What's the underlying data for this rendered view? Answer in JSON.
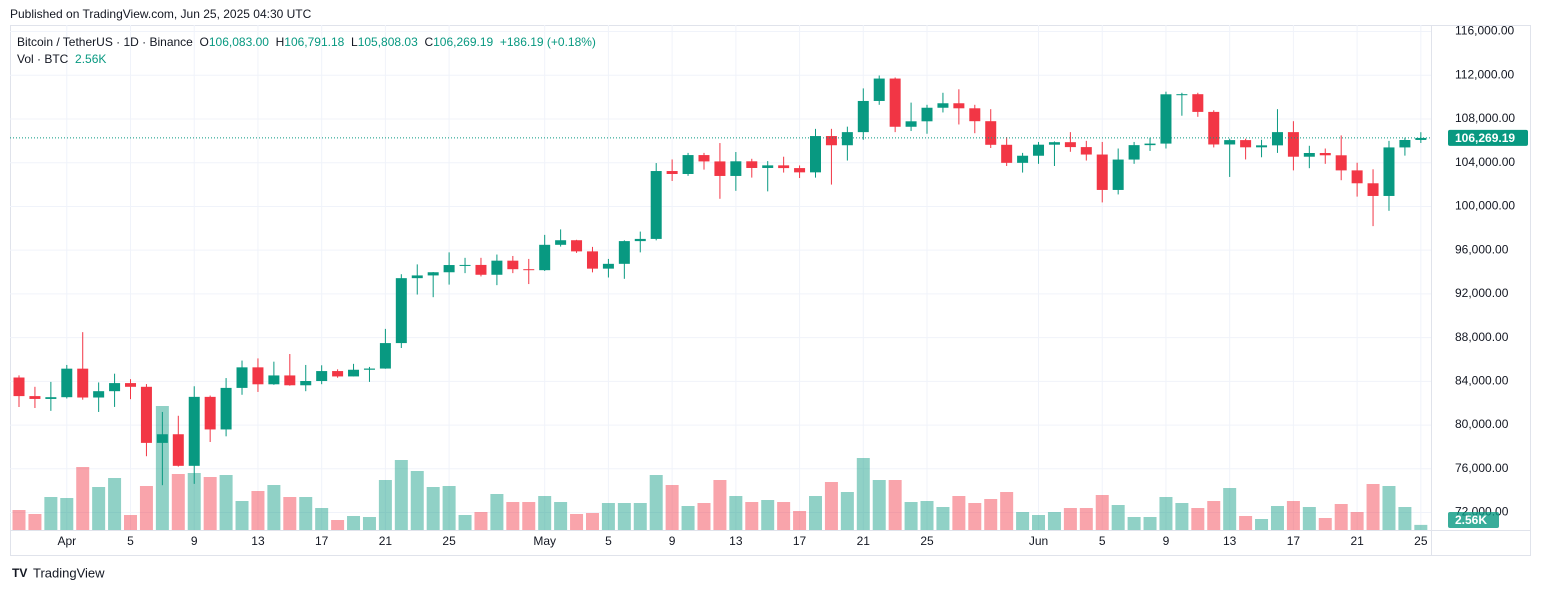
{
  "published": "Published on TradingView.com, Jun 25, 2025 04:30 UTC",
  "legend": {
    "symbol": "Bitcoin / TetherUS · 1D · Binance",
    "ohlc": [
      {
        "key": "O",
        "text": "106,083.00"
      },
      {
        "key": "H",
        "text": "106,791.18"
      },
      {
        "key": "L",
        "text": "105,808.03"
      },
      {
        "key": "C",
        "text": "106,269.19"
      }
    ],
    "change": "+186.19 (+0.18%)",
    "volume_key": "Vol · BTC"
  },
  "footer_brand": "TradingView",
  "chart_data": {
    "type": "candlestick",
    "categories": [
      null,
      null,
      null,
      "Apr",
      null,
      null,
      null,
      "5",
      null,
      null,
      null,
      "9",
      null,
      null,
      null,
      "13",
      null,
      null,
      null,
      "17",
      null,
      null,
      null,
      "21",
      null,
      null,
      null,
      "25",
      null,
      null,
      null,
      null,
      null,
      "May",
      null,
      null,
      null,
      "5",
      null,
      null,
      null,
      "9",
      null,
      null,
      null,
      "13",
      null,
      null,
      null,
      "17",
      null,
      null,
      null,
      "21",
      null,
      null,
      null,
      "25",
      null,
      null,
      null,
      null,
      null,
      null,
      "Jun",
      null,
      null,
      null,
      "5",
      null,
      null,
      null,
      "9",
      null,
      null,
      null,
      "13",
      null,
      null,
      null,
      "17",
      null,
      null,
      null,
      "21",
      null,
      null,
      null,
      "25"
    ],
    "open": [
      84350,
      82650,
      82390,
      82550,
      85160,
      82520,
      83100,
      83840,
      83500,
      78370,
      79160,
      76270,
      82580,
      79600,
      83400,
      85280,
      83730,
      84540,
      83640,
      84030,
      84940,
      84450,
      85060,
      85170,
      87500,
      93440,
      93690,
      93980,
      94640,
      94650,
      93750,
      95040,
      94260,
      94170,
      96490,
      96910,
      95890,
      94310,
      94750,
      96830,
      97030,
      103240,
      102970,
      104700,
      104120,
      102790,
      104130,
      103520,
      103760,
      103510,
      103120,
      106440,
      105600,
      106800,
      109650,
      111700,
      107290,
      107790,
      109030,
      109440,
      108980,
      107800,
      105640,
      103990,
      104640,
      105650,
      105880,
      105430,
      104750,
      101510,
      104290,
      105610,
      105750,
      110260,
      110270,
      108650,
      105670,
      106070,
      105410,
      105590,
      106800,
      104550,
      104890,
      104680,
      103300,
      102120,
      100960,
      105400,
      106083
    ],
    "high": [
      84550,
      83500,
      83950,
      85500,
      88500,
      83900,
      84700,
      84200,
      83750,
      81200,
      80850,
      83550,
      82700,
      84300,
      85900,
      86100,
      85800,
      86500,
      85500,
      85470,
      85100,
      85600,
      85320,
      88800,
      93800,
      94700,
      94000,
      95800,
      95300,
      95300,
      95600,
      95470,
      95200,
      97400,
      97900,
      96950,
      96300,
      95200,
      96900,
      97700,
      103970,
      104300,
      104900,
      104900,
      105800,
      104980,
      104360,
      104150,
      104550,
      103750,
      107100,
      107100,
      107300,
      110800,
      111980,
      111800,
      109500,
      109300,
      110400,
      110720,
      109300,
      108900,
      106350,
      104900,
      105900,
      105950,
      106800,
      106000,
      105900,
      105300,
      105900,
      106300,
      110500,
      110400,
      110400,
      108800,
      106200,
      106200,
      106100,
      108900,
      107800,
      105550,
      105300,
      106500,
      104000,
      103400,
      106000,
      106300,
      106791.18
    ],
    "low": [
      81650,
      81560,
      81300,
      82430,
      82320,
      81200,
      81660,
      82370,
      77150,
      74500,
      76200,
      74620,
      78450,
      78970,
      82770,
      83030,
      83680,
      83600,
      83100,
      83740,
      84330,
      84450,
      83950,
      85150,
      87050,
      91940,
      91700,
      92850,
      93900,
      93600,
      92800,
      93900,
      92900,
      94100,
      96330,
      95750,
      93970,
      93500,
      93380,
      95800,
      96900,
      102330,
      102800,
      103370,
      100700,
      101430,
      102640,
      101380,
      103100,
      102600,
      102640,
      102000,
      104200,
      106100,
      109300,
      106800,
      106900,
      106650,
      108600,
      107500,
      106700,
      105350,
      103700,
      103100,
      103900,
      103700,
      105000,
      104200,
      100370,
      101100,
      103900,
      105080,
      105300,
      108300,
      108200,
      105400,
      102700,
      104300,
      104500,
      104900,
      103300,
      103500,
      103900,
      102400,
      100900,
      98200,
      99600,
      104650,
      105808.03
    ],
    "close": [
      82650,
      82390,
      82550,
      85160,
      82520,
      83100,
      83840,
      83500,
      78370,
      79160,
      76270,
      82580,
      79600,
      83400,
      85280,
      83730,
      84540,
      83640,
      84030,
      84940,
      84450,
      85060,
      85170,
      87500,
      93440,
      93690,
      93980,
      94640,
      94650,
      93750,
      95040,
      94260,
      94170,
      96490,
      96910,
      95890,
      94310,
      94750,
      96830,
      97030,
      103240,
      102970,
      104700,
      104120,
      102790,
      104130,
      103520,
      103760,
      103510,
      103120,
      106440,
      105600,
      106800,
      109650,
      111700,
      107290,
      107790,
      109030,
      109440,
      108980,
      107800,
      105640,
      103990,
      104640,
      105650,
      105880,
      105430,
      104750,
      101510,
      104290,
      105610,
      105750,
      110260,
      110270,
      108650,
      105670,
      106070,
      105410,
      105590,
      106800,
      104550,
      104890,
      104680,
      103300,
      102120,
      100960,
      105400,
      106080,
      106269.19
    ],
    "volume": [
      10000,
      8000,
      16500,
      16000,
      31500,
      21500,
      26000,
      7500,
      22000,
      62000,
      28000,
      28500,
      26500,
      27500,
      14500,
      19500,
      22500,
      16500,
      16500,
      11000,
      5000,
      7000,
      6500,
      25000,
      35000,
      29500,
      21500,
      22000,
      7500,
      9000,
      18000,
      14000,
      14000,
      17000,
      14000,
      8000,
      8500,
      13500,
      13500,
      13500,
      27500,
      22500,
      12000,
      13500,
      25000,
      17000,
      14000,
      15000,
      14000,
      9500,
      17000,
      24000,
      19000,
      36000,
      25000,
      25000,
      14000,
      14500,
      11500,
      17000,
      13500,
      15500,
      19000,
      9000,
      7500,
      9000,
      11000,
      11000,
      17500,
      12500,
      6500,
      6500,
      16500,
      13500,
      11000,
      14500,
      21000,
      7000,
      5500,
      12000,
      14500,
      11500,
      6000,
      13000,
      9000,
      23000,
      22000,
      11500,
      2560
    ],
    "close_label": "106,269.19",
    "volume_label": "2.56K",
    "up_color": "#089981",
    "down_color": "#f23645",
    "ylim": [
      70400,
      116600
    ],
    "yticks": [
      {
        "value": 72000,
        "label": "72,000.00"
      },
      {
        "value": 76000,
        "label": "76,000.00"
      },
      {
        "value": 80000,
        "label": "80,000.00"
      },
      {
        "value": 84000,
        "label": "84,000.00"
      },
      {
        "value": 88000,
        "label": "88,000.00"
      },
      {
        "value": 92000,
        "label": "92,000.00"
      },
      {
        "value": 96000,
        "label": "96,000.00"
      },
      {
        "value": 100000,
        "label": "100,000.00"
      },
      {
        "value": 104000,
        "label": "104,000.00"
      },
      {
        "value": 108000,
        "label": "108,000.00"
      },
      {
        "value": 112000,
        "label": "112,000.00"
      },
      {
        "value": 116000,
        "label": "116,000.00"
      }
    ],
    "grid": true
  }
}
